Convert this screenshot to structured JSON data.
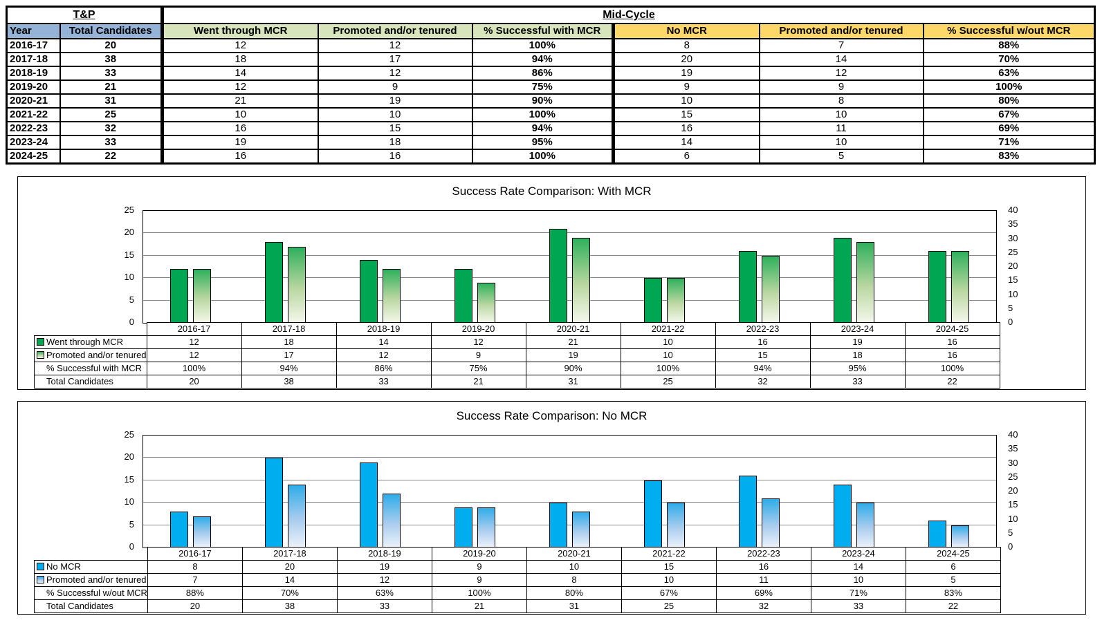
{
  "topTable": {
    "tp_label": "T&P",
    "midcycle_label": "Mid-Cycle",
    "headers": [
      "Year",
      "Total Candidates",
      "Went through MCR",
      "Promoted and/or tenured",
      "% Successful with MCR",
      "No MCR",
      "Promoted and/or tenured",
      "% Successful w/out MCR"
    ],
    "rows": [
      [
        "2016-17",
        "20",
        "12",
        "12",
        "100%",
        "8",
        "7",
        "88%"
      ],
      [
        "2017-18",
        "38",
        "18",
        "17",
        "94%",
        "20",
        "14",
        "70%"
      ],
      [
        "2018-19",
        "33",
        "14",
        "12",
        "86%",
        "19",
        "12",
        "63%"
      ],
      [
        "2019-20",
        "21",
        "12",
        "9",
        "75%",
        "9",
        "9",
        "100%"
      ],
      [
        "2020-21",
        "31",
        "21",
        "19",
        "90%",
        "10",
        "8",
        "80%"
      ],
      [
        "2021-22",
        "25",
        "10",
        "10",
        "100%",
        "15",
        "10",
        "67%"
      ],
      [
        "2022-23",
        "32",
        "16",
        "15",
        "94%",
        "16",
        "11",
        "69%"
      ],
      [
        "2023-24",
        "33",
        "19",
        "18",
        "95%",
        "14",
        "10",
        "71%"
      ],
      [
        "2024-25",
        "22",
        "16",
        "16",
        "100%",
        "6",
        "5",
        "83%"
      ]
    ],
    "header_colors": {
      "tp": "#95B3D7",
      "mcr": "#D8E4BC",
      "no_mcr": "#FDD768"
    }
  },
  "chart_data": [
    {
      "type": "bar",
      "title": "Success Rate Comparison: With MCR",
      "categories": [
        "2016-17",
        "2017-18",
        "2018-19",
        "2019-20",
        "2020-21",
        "2021-22",
        "2022-23",
        "2023-24",
        "2024-25"
      ],
      "series": [
        {
          "name": "Went through MCR",
          "values": [
            12,
            18,
            14,
            12,
            21,
            10,
            16,
            19,
            16
          ]
        },
        {
          "name": "Promoted and/or tenured",
          "values": [
            12,
            17,
            12,
            9,
            19,
            10,
            15,
            18,
            16
          ]
        }
      ],
      "table_rows": [
        {
          "label": "Went through MCR",
          "marker": "solid",
          "values": [
            "12",
            "18",
            "14",
            "12",
            "21",
            "10",
            "16",
            "19",
            "16"
          ]
        },
        {
          "label": "Promoted and/or tenured",
          "marker": "gradient",
          "values": [
            "12",
            "17",
            "12",
            "9",
            "19",
            "10",
            "15",
            "18",
            "16"
          ]
        },
        {
          "label": "% Successful with MCR",
          "marker": null,
          "values": [
            "100%",
            "94%",
            "86%",
            "75%",
            "90%",
            "100%",
            "94%",
            "95%",
            "100%"
          ]
        },
        {
          "label": "Total Candidates",
          "marker": null,
          "values": [
            "20",
            "38",
            "33",
            "21",
            "31",
            "25",
            "32",
            "33",
            "22"
          ]
        }
      ],
      "left_axis": {
        "min": 0,
        "max": 25,
        "step": 5
      },
      "right_axis": {
        "min": 0,
        "max": 40,
        "step": 5
      },
      "grid": true,
      "legend_position": "table-left",
      "colors": {
        "solid": "#00A651",
        "grad_top": "#2FB05C",
        "grad_mid": "#B9D7A0",
        "grad_bot": "#F4F7EB"
      }
    },
    {
      "type": "bar",
      "title": "Success Rate Comparison: No MCR",
      "categories": [
        "2016-17",
        "2017-18",
        "2018-19",
        "2019-20",
        "2020-21",
        "2021-22",
        "2022-23",
        "2023-24",
        "2024-25"
      ],
      "series": [
        {
          "name": "No MCR",
          "values": [
            8,
            20,
            19,
            9,
            10,
            15,
            16,
            14,
            6
          ]
        },
        {
          "name": "Promoted and/or tenured",
          "values": [
            7,
            14,
            12,
            9,
            8,
            10,
            11,
            10,
            5
          ]
        }
      ],
      "table_rows": [
        {
          "label": "No MCR",
          "marker": "solid",
          "values": [
            "8",
            "20",
            "19",
            "9",
            "10",
            "15",
            "16",
            "14",
            "6"
          ]
        },
        {
          "label": "Promoted and/or tenured",
          "marker": "gradient",
          "values": [
            "7",
            "14",
            "12",
            "9",
            "8",
            "10",
            "11",
            "10",
            "5"
          ]
        },
        {
          "label": "% Successful w/out MCR",
          "marker": null,
          "values": [
            "88%",
            "70%",
            "63%",
            "100%",
            "80%",
            "67%",
            "69%",
            "71%",
            "83%"
          ]
        },
        {
          "label": "Total Candidates",
          "marker": null,
          "values": [
            "20",
            "38",
            "33",
            "21",
            "31",
            "25",
            "32",
            "33",
            "22"
          ]
        }
      ],
      "left_axis": {
        "min": 0,
        "max": 25,
        "step": 5
      },
      "right_axis": {
        "min": 0,
        "max": 40,
        "step": 5
      },
      "grid": true,
      "legend_position": "table-left",
      "colors": {
        "solid": "#00AEEF",
        "grad_top": "#2FACE8",
        "grad_mid": "#A8CCEE",
        "grad_bot": "#EAF1FA"
      }
    }
  ]
}
